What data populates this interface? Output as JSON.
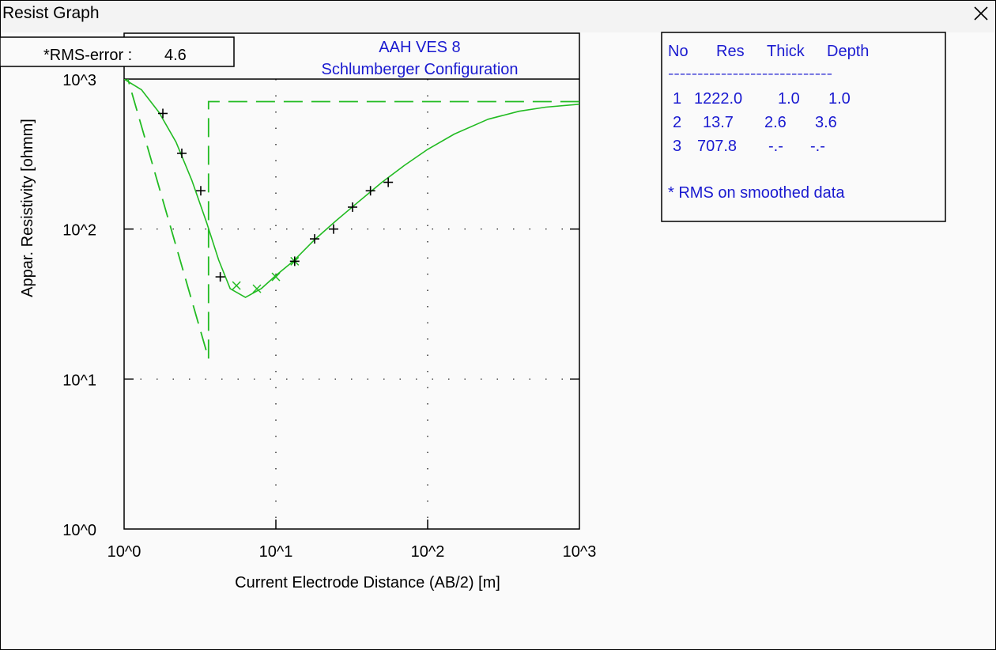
{
  "window": {
    "title": "Resist Graph",
    "close_icon": "close-x-icon"
  },
  "rms_box": {
    "label": "*RMS-error :",
    "value": "4.6"
  },
  "model_table": {
    "headers": [
      "No",
      "Res",
      "Thick",
      "Depth"
    ],
    "separator": "----------------------------",
    "rows": [
      [
        "1",
        "1222.0",
        "1.0",
        "1.0"
      ],
      [
        "2",
        "13.7",
        "2.6",
        "3.6"
      ],
      [
        "3",
        "707.8",
        "-.-",
        "-.-"
      ]
    ],
    "note": "* RMS on smoothed data",
    "text_color": "#1a1ad0"
  },
  "colors": {
    "curve": "#22bb22",
    "title": "#1a1ad0",
    "axes": "#000000",
    "markers": "#000000"
  },
  "chart_data": {
    "type": "scatter",
    "title": "AAH VES 8",
    "subtitle": "Schlumberger Configuration",
    "xlabel": "Current Electrode Distance (AB/2) [m]",
    "ylabel": "Appar. Resistivity [ohmm]",
    "xscale": "log",
    "yscale": "log",
    "xlim": [
      1,
      1000
    ],
    "ylim": [
      1,
      1000
    ],
    "xticks": [
      "10^0",
      "10^1",
      "10^2",
      "10^3"
    ],
    "yticks": [
      "10^0",
      "10^1",
      "10^2",
      "10^3"
    ],
    "grid": "dotted",
    "observed_points": {
      "x": [
        1.8,
        2.4,
        3.2,
        4.3,
        13.3,
        18,
        24,
        32,
        42,
        55
      ],
      "y": [
        590,
        320,
        180,
        48,
        61,
        86,
        100,
        140,
        180,
        205
      ]
    },
    "smoothed_points": {
      "x": [
        5.5,
        7.5,
        10,
        13.3
      ],
      "y": [
        42,
        40,
        48,
        61
      ]
    },
    "calculated_curve": {
      "x": [
        1,
        1.3,
        1.7,
        2.2,
        2.8,
        3.5,
        4.2,
        5.0,
        6.3,
        8,
        10,
        13,
        18,
        25,
        35,
        50,
        70,
        100,
        150,
        250,
        400,
        600,
        1000
      ],
      "y": [
        1000,
        850,
        600,
        380,
        210,
        110,
        62,
        40,
        35,
        40,
        49,
        61,
        85,
        114,
        152,
        205,
        265,
        340,
        430,
        540,
        610,
        650,
        680
      ]
    },
    "model_curve": {
      "x": [
        1,
        3.6,
        3.6,
        3.6,
        1000
      ],
      "y": [
        1222,
        13.7,
        13.7,
        707.8,
        707.8
      ]
    }
  }
}
